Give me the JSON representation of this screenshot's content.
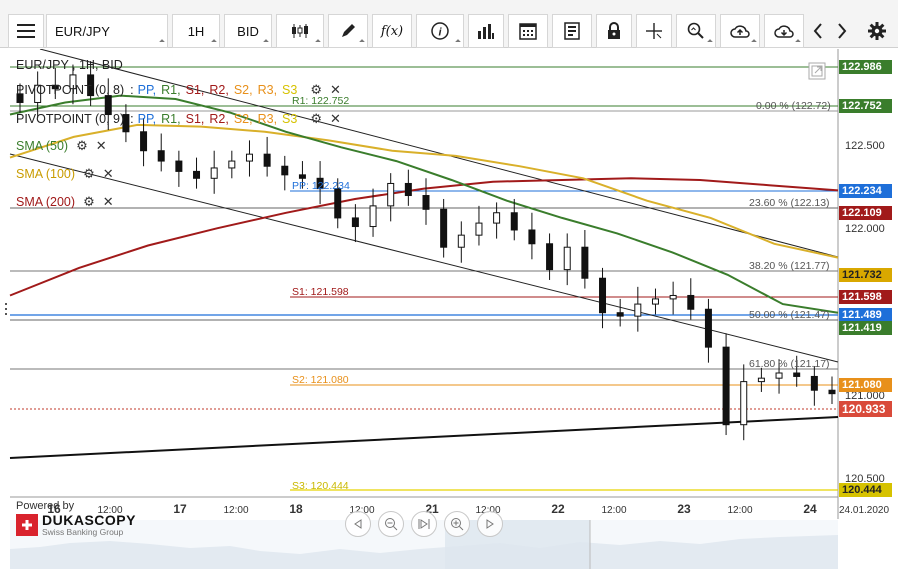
{
  "toolbar": {
    "menu_icon": "hamburger-menu-icon",
    "symbol": "EUR/JPY",
    "interval": "1H",
    "side": "BID",
    "function_label": "f(x)"
  },
  "chart_title": "EUR/JPY , 1H, BID",
  "legend": [
    {
      "id": "pivot1",
      "name": "PIVOTPOINT (0, 8)",
      "sep": ":",
      "levels": [
        {
          "t": "PP,",
          "c": "#1e6fd9"
        },
        {
          "t": "R1,",
          "c": "#3a7d2c"
        },
        {
          "t": "S1,",
          "c": "#a11a1a"
        },
        {
          "t": "R2,",
          "c": "#a11a1a"
        },
        {
          "t": "S2,",
          "c": "#e8901a"
        },
        {
          "t": "R3,",
          "c": "#e8901a"
        },
        {
          "t": "S3",
          "c": "#d6c200"
        }
      ]
    },
    {
      "id": "pivot2",
      "name": "PIVOTPOINT (0, 9)",
      "sep": ":",
      "levels": [
        {
          "t": "PP,",
          "c": "#1e6fd9"
        },
        {
          "t": "R1,",
          "c": "#3a7d2c"
        },
        {
          "t": "S1,",
          "c": "#a11a1a"
        },
        {
          "t": "R2,",
          "c": "#a11a1a"
        },
        {
          "t": "S2,",
          "c": "#e8901a"
        },
        {
          "t": "R3,",
          "c": "#e8901a"
        },
        {
          "t": "S3",
          "c": "#d6c200"
        }
      ]
    },
    {
      "id": "sma50",
      "name": "SMA (50)",
      "color": "#3a7d2c"
    },
    {
      "id": "sma100",
      "name": "SMA (100)",
      "color": "#d9a800"
    },
    {
      "id": "sma200",
      "name": "SMA (200)",
      "color": "#a11a1a"
    }
  ],
  "chart_labels": {
    "r1": "R1: 122.752",
    "pp": "PP: 122.234",
    "s1": "S1: 121.598",
    "s2": "S2: 121.080",
    "s3": "S3: 120.444",
    "fib0": "0.00 % (122.72)",
    "fib236": "23.60 % (122.13)",
    "fib382": "38.20 % (121.77)",
    "fib50": "50.00 % (121.47)",
    "fib618": "61.80 % (121.17)"
  },
  "price_axis": {
    "ticks": [
      "122.500",
      "122.000",
      "121.000",
      "120.500"
    ],
    "markers": [
      {
        "value": "122.986",
        "color": "#3a7d2c"
      },
      {
        "value": "122.752",
        "color": "#3a7d2c"
      },
      {
        "value": "122.234",
        "color": "#1e6fd9"
      },
      {
        "value": "122.109",
        "color": "#a11a1a"
      },
      {
        "value": "121.732",
        "color": "#d9a800",
        "text_color": "#222"
      },
      {
        "value": "121.598",
        "color": "#a11a1a"
      },
      {
        "value": "121.489",
        "color": "#1e6fd9"
      },
      {
        "value": "121.419",
        "color": "#3a7d2c"
      },
      {
        "value": "121.080",
        "color": "#e8901a"
      },
      {
        "value": "120.933",
        "color": "#d94a3a"
      },
      {
        "value": "120.444",
        "color": "#d6c200",
        "text_color": "#222"
      }
    ]
  },
  "time_axis": {
    "labels": [
      "16",
      "12:00",
      "17",
      "12:00",
      "18",
      "12:00",
      "21",
      "12:00",
      "22",
      "12:00",
      "23",
      "12:00",
      "24"
    ],
    "date": "24.01.2020"
  },
  "branding": {
    "powered_by": "Powered by",
    "name": "DUKASCOPY",
    "tagline": "Swiss Banking Group"
  },
  "chart_data": {
    "type": "candlestick",
    "title": "EUR/JPY , 1H, BID",
    "y_range": [
      120.4,
      123.0
    ],
    "last_price": 120.933,
    "levels": {
      "PP": 122.234,
      "R1": 122.752,
      "S1": 121.598,
      "S2": 121.08,
      "S3": 120.444,
      "fib_0": 122.72,
      "fib_23_6": 122.13,
      "fib_38_2": 121.77,
      "fib_50": 121.47,
      "fib_61_8": 121.17
    },
    "close_series": [
      122.62,
      122.72,
      122.7,
      122.78,
      122.66,
      122.55,
      122.45,
      122.34,
      122.28,
      122.22,
      122.18,
      122.24,
      122.28,
      122.32,
      122.25,
      122.2,
      122.18,
      122.12,
      121.95,
      121.9,
      122.02,
      122.15,
      122.08,
      122.0,
      121.78,
      121.85,
      121.92,
      121.98,
      121.88,
      121.8,
      121.65,
      121.78,
      121.6,
      121.4,
      121.38,
      121.45,
      121.48,
      121.5,
      121.42,
      121.2,
      120.75,
      121.0,
      121.02,
      121.05,
      121.03,
      120.95,
      120.93
    ],
    "sma_50": [
      122.55,
      122.62,
      122.66,
      122.64,
      122.56,
      122.45,
      122.36,
      122.28,
      122.17,
      122.05,
      121.95,
      121.86,
      121.75,
      121.62,
      121.45,
      121.4
    ],
    "sma_100": [
      122.3,
      122.42,
      122.49,
      122.48,
      122.45,
      122.4,
      122.34,
      122.31,
      122.25,
      122.18,
      122.05,
      121.95,
      121.8,
      121.72
    ],
    "sma_200": [
      121.5,
      121.66,
      121.79,
      121.89,
      121.98,
      122.06,
      122.12,
      122.16,
      122.17,
      122.18,
      122.17,
      122.14,
      122.11
    ]
  }
}
